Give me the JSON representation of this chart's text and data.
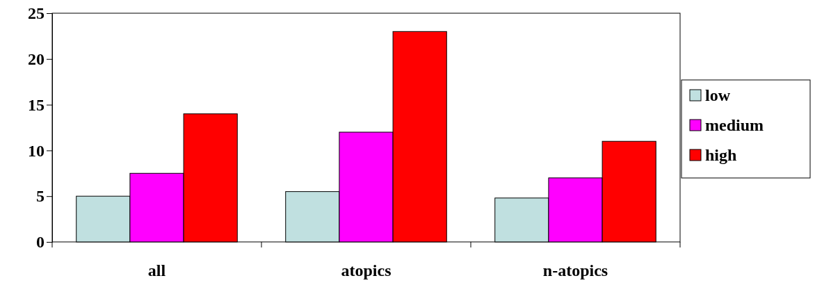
{
  "chart_data": {
    "type": "bar",
    "categories": [
      "all",
      "atopics",
      "n-atopics"
    ],
    "series": [
      {
        "name": "low",
        "color": "#c0e0e0",
        "values": [
          5,
          5.5,
          4.8
        ]
      },
      {
        "name": "medium",
        "color": "#ff00ff",
        "values": [
          7.5,
          12,
          7
        ]
      },
      {
        "name": "high",
        "color": "#ff0000",
        "values": [
          14,
          23,
          11
        ]
      }
    ],
    "ylim": [
      0,
      25
    ],
    "yticks": [
      0,
      5,
      10,
      15,
      20,
      25
    ],
    "grid": false,
    "legend": "right"
  }
}
